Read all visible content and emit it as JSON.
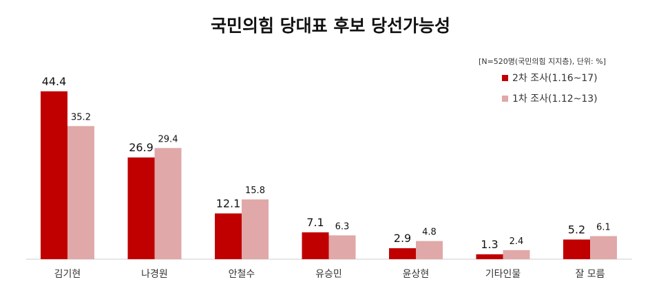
{
  "chart_data": {
    "type": "bar",
    "title": "국민의힘 당대표 후보 당선가능성",
    "note": "[N=520명(국민의힘 지지층), 단위: %]",
    "categories": [
      "김기현",
      "나경원",
      "안철수",
      "유승민",
      "윤상현",
      "기타인물",
      "잘 모름"
    ],
    "series": [
      {
        "name": "2차 조사(1.16~17)",
        "color": "#C00000",
        "values": [
          44.4,
          26.9,
          12.1,
          7.1,
          2.9,
          1.3,
          5.2
        ]
      },
      {
        "name": "1차 조사(1.12~13)",
        "color": "#E0A8A8",
        "values": [
          35.2,
          29.4,
          15.8,
          6.3,
          4.8,
          2.4,
          6.1
        ]
      }
    ],
    "ylim": [
      0,
      50
    ],
    "legend_position": "top-right",
    "grid": false
  }
}
